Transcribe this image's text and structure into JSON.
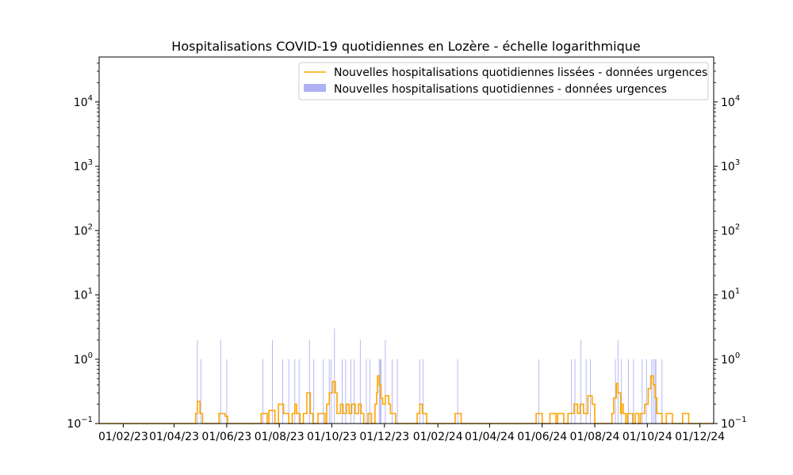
{
  "chart_data": {
    "type": "bar",
    "title": "Hospitalisations COVID-19 quotidiennes en Lozère - échelle logarithmique",
    "xlabel": "",
    "ylabel": "",
    "y_scale": "log",
    "ylim": [
      0.1,
      50000
    ],
    "y_ticks": [
      {
        "value": 0.1,
        "base": "10",
        "exp": "−1"
      },
      {
        "value": 1,
        "base": "10",
        "exp": "0"
      },
      {
        "value": 10,
        "base": "10",
        "exp": "1"
      },
      {
        "value": 100,
        "base": "10",
        "exp": "2"
      },
      {
        "value": 1000,
        "base": "10",
        "exp": "3"
      },
      {
        "value": 10000,
        "base": "10",
        "exp": "4"
      }
    ],
    "x_range": [
      "2023-01-04",
      "2024-12-17"
    ],
    "x_ticks": [
      {
        "date": "2023-02-01",
        "label": "01/02/23"
      },
      {
        "date": "2023-04-01",
        "label": "01/04/23"
      },
      {
        "date": "2023-06-01",
        "label": "01/06/23"
      },
      {
        "date": "2023-08-01",
        "label": "01/08/23"
      },
      {
        "date": "2023-10-01",
        "label": "01/10/23"
      },
      {
        "date": "2023-12-01",
        "label": "01/12/23"
      },
      {
        "date": "2024-02-01",
        "label": "01/02/24"
      },
      {
        "date": "2024-04-01",
        "label": "01/04/24"
      },
      {
        "date": "2024-06-01",
        "label": "01/06/24"
      },
      {
        "date": "2024-08-01",
        "label": "01/08/24"
      },
      {
        "date": "2024-10-01",
        "label": "01/10/24"
      },
      {
        "date": "2024-12-01",
        "label": "01/12/24"
      }
    ],
    "legend": {
      "placement": "upper-right",
      "entries": [
        {
          "label": "Nouvelles hospitalisations quotidiennes lissées - données urgences",
          "kind": "line",
          "color": "#ffa500"
        },
        {
          "label": "Nouvelles hospitalisations quotidiennes - données urgences",
          "kind": "bar",
          "color": "#b0b0f5"
        }
      ]
    },
    "series": [
      {
        "kind": "bar",
        "color": "#b0b0f5",
        "points": [
          {
            "date": "2023-04-28",
            "value": 2
          },
          {
            "date": "2023-05-02",
            "value": 1
          },
          {
            "date": "2023-05-25",
            "value": 2
          },
          {
            "date": "2023-06-01",
            "value": 1
          },
          {
            "date": "2023-07-13",
            "value": 1
          },
          {
            "date": "2023-07-24",
            "value": 2
          },
          {
            "date": "2023-08-05",
            "value": 1
          },
          {
            "date": "2023-08-12",
            "value": 1
          },
          {
            "date": "2023-08-19",
            "value": 1
          },
          {
            "date": "2023-08-24",
            "value": 1
          },
          {
            "date": "2023-09-05",
            "value": 2
          },
          {
            "date": "2023-09-10",
            "value": 1
          },
          {
            "date": "2023-09-21",
            "value": 1
          },
          {
            "date": "2023-09-28",
            "value": 1
          },
          {
            "date": "2023-09-30",
            "value": 1
          },
          {
            "date": "2023-10-04",
            "value": 3
          },
          {
            "date": "2023-10-13",
            "value": 1
          },
          {
            "date": "2023-10-17",
            "value": 1
          },
          {
            "date": "2023-10-23",
            "value": 1
          },
          {
            "date": "2023-10-27",
            "value": 1
          },
          {
            "date": "2023-11-03",
            "value": 2
          },
          {
            "date": "2023-11-10",
            "value": 1
          },
          {
            "date": "2023-11-14",
            "value": 1
          },
          {
            "date": "2023-11-25",
            "value": 1
          },
          {
            "date": "2023-11-26",
            "value": 1
          },
          {
            "date": "2023-11-27",
            "value": 1
          },
          {
            "date": "2023-12-02",
            "value": 2
          },
          {
            "date": "2023-12-10",
            "value": 1
          },
          {
            "date": "2023-12-16",
            "value": 1
          },
          {
            "date": "2024-01-11",
            "value": 1
          },
          {
            "date": "2024-01-15",
            "value": 1
          },
          {
            "date": "2024-02-24",
            "value": 1
          },
          {
            "date": "2024-05-28",
            "value": 1
          },
          {
            "date": "2024-07-05",
            "value": 1
          },
          {
            "date": "2024-07-09",
            "value": 1
          },
          {
            "date": "2024-07-16",
            "value": 2
          },
          {
            "date": "2024-07-22",
            "value": 1
          },
          {
            "date": "2024-07-27",
            "value": 1
          },
          {
            "date": "2024-08-25",
            "value": 1
          },
          {
            "date": "2024-08-28",
            "value": 2
          },
          {
            "date": "2024-09-01",
            "value": 1
          },
          {
            "date": "2024-09-09",
            "value": 1
          },
          {
            "date": "2024-09-15",
            "value": 1
          },
          {
            "date": "2024-09-25",
            "value": 1
          },
          {
            "date": "2024-09-30",
            "value": 1
          },
          {
            "date": "2024-10-06",
            "value": 1
          },
          {
            "date": "2024-10-08",
            "value": 1
          },
          {
            "date": "2024-10-10",
            "value": 1
          },
          {
            "date": "2024-10-11",
            "value": 1
          },
          {
            "date": "2024-10-18",
            "value": 1
          }
        ]
      },
      {
        "kind": "line",
        "color": "#ffa500",
        "points": [
          [
            "2023-01-04",
            0.1
          ],
          [
            "2023-04-26",
            0.1
          ],
          [
            "2023-04-26",
            0.143
          ],
          [
            "2023-04-28",
            0.143
          ],
          [
            "2023-04-28",
            0.22
          ],
          [
            "2023-05-01",
            0.22
          ],
          [
            "2023-05-01",
            0.143
          ],
          [
            "2023-05-04",
            0.143
          ],
          [
            "2023-05-04",
            0.1
          ],
          [
            "2023-05-23",
            0.1
          ],
          [
            "2023-05-23",
            0.143
          ],
          [
            "2023-05-30",
            0.143
          ],
          [
            "2023-05-30",
            0.13
          ],
          [
            "2023-06-02",
            0.13
          ],
          [
            "2023-06-02",
            0.1
          ],
          [
            "2023-07-11",
            0.1
          ],
          [
            "2023-07-11",
            0.143
          ],
          [
            "2023-07-18",
            0.143
          ],
          [
            "2023-07-18",
            0.1
          ],
          [
            "2023-07-20",
            0.1
          ],
          [
            "2023-07-20",
            0.16
          ],
          [
            "2023-07-27",
            0.16
          ],
          [
            "2023-07-27",
            0.1
          ],
          [
            "2023-07-31",
            0.1
          ],
          [
            "2023-07-31",
            0.2
          ],
          [
            "2023-08-06",
            0.2
          ],
          [
            "2023-08-06",
            0.143
          ],
          [
            "2023-08-12",
            0.143
          ],
          [
            "2023-08-12",
            0.1
          ],
          [
            "2023-08-16",
            0.1
          ],
          [
            "2023-08-16",
            0.143
          ],
          [
            "2023-08-19",
            0.143
          ],
          [
            "2023-08-19",
            0.2
          ],
          [
            "2023-08-21",
            0.2
          ],
          [
            "2023-08-21",
            0.143
          ],
          [
            "2023-08-25",
            0.143
          ],
          [
            "2023-08-25",
            0.1
          ],
          [
            "2023-08-29",
            0.1
          ],
          [
            "2023-08-29",
            0.143
          ],
          [
            "2023-09-02",
            0.143
          ],
          [
            "2023-09-02",
            0.3
          ],
          [
            "2023-09-06",
            0.3
          ],
          [
            "2023-09-06",
            0.143
          ],
          [
            "2023-09-09",
            0.143
          ],
          [
            "2023-09-09",
            0.1
          ],
          [
            "2023-09-15",
            0.1
          ],
          [
            "2023-09-15",
            0.143
          ],
          [
            "2023-09-23",
            0.143
          ],
          [
            "2023-09-23",
            0.1
          ],
          [
            "2023-09-25",
            0.1
          ],
          [
            "2023-09-25",
            0.2
          ],
          [
            "2023-09-28",
            0.2
          ],
          [
            "2023-09-28",
            0.3
          ],
          [
            "2023-10-02",
            0.3
          ],
          [
            "2023-10-02",
            0.45
          ],
          [
            "2023-10-05",
            0.45
          ],
          [
            "2023-10-05",
            0.3
          ],
          [
            "2023-10-07",
            0.3
          ],
          [
            "2023-10-07",
            0.143
          ],
          [
            "2023-10-11",
            0.143
          ],
          [
            "2023-10-11",
            0.2
          ],
          [
            "2023-10-14",
            0.2
          ],
          [
            "2023-10-14",
            0.143
          ],
          [
            "2023-10-18",
            0.143
          ],
          [
            "2023-10-18",
            0.2
          ],
          [
            "2023-10-21",
            0.2
          ],
          [
            "2023-10-21",
            0.143
          ],
          [
            "2023-10-24",
            0.143
          ],
          [
            "2023-10-24",
            0.2
          ],
          [
            "2023-10-28",
            0.2
          ],
          [
            "2023-10-28",
            0.143
          ],
          [
            "2023-11-01",
            0.143
          ],
          [
            "2023-11-01",
            0.2
          ],
          [
            "2023-11-04",
            0.2
          ],
          [
            "2023-11-04",
            0.143
          ],
          [
            "2023-11-07",
            0.143
          ],
          [
            "2023-11-07",
            0.1
          ],
          [
            "2023-11-12",
            0.1
          ],
          [
            "2023-11-12",
            0.143
          ],
          [
            "2023-11-16",
            0.143
          ],
          [
            "2023-11-16",
            0.1
          ],
          [
            "2023-11-20",
            0.1
          ],
          [
            "2023-11-20",
            0.2
          ],
          [
            "2023-11-22",
            0.2
          ],
          [
            "2023-11-22",
            0.3
          ],
          [
            "2023-11-23",
            0.3
          ],
          [
            "2023-11-23",
            0.55
          ],
          [
            "2023-11-25",
            0.55
          ],
          [
            "2023-11-25",
            0.4
          ],
          [
            "2023-11-27",
            0.4
          ],
          [
            "2023-11-27",
            0.25
          ],
          [
            "2023-11-29",
            0.25
          ],
          [
            "2023-11-29",
            0.2
          ],
          [
            "2023-12-02",
            0.2
          ],
          [
            "2023-12-02",
            0.27
          ],
          [
            "2023-12-06",
            0.27
          ],
          [
            "2023-12-06",
            0.2
          ],
          [
            "2023-12-08",
            0.2
          ],
          [
            "2023-12-08",
            0.143
          ],
          [
            "2023-12-14",
            0.143
          ],
          [
            "2023-12-14",
            0.1
          ],
          [
            "2024-01-08",
            0.1
          ],
          [
            "2024-01-08",
            0.143
          ],
          [
            "2024-01-11",
            0.143
          ],
          [
            "2024-01-11",
            0.2
          ],
          [
            "2024-01-14",
            0.2
          ],
          [
            "2024-01-14",
            0.143
          ],
          [
            "2024-01-19",
            0.143
          ],
          [
            "2024-01-19",
            0.1
          ],
          [
            "2024-02-21",
            0.1
          ],
          [
            "2024-02-21",
            0.143
          ],
          [
            "2024-02-28",
            0.143
          ],
          [
            "2024-02-28",
            0.1
          ],
          [
            "2024-05-25",
            0.1
          ],
          [
            "2024-05-25",
            0.143
          ],
          [
            "2024-06-01",
            0.143
          ],
          [
            "2024-06-01",
            0.1
          ],
          [
            "2024-06-10",
            0.1
          ],
          [
            "2024-06-10",
            0.143
          ],
          [
            "2024-06-17",
            0.143
          ],
          [
            "2024-06-17",
            0.1
          ],
          [
            "2024-06-19",
            0.1
          ],
          [
            "2024-06-19",
            0.143
          ],
          [
            "2024-06-26",
            0.143
          ],
          [
            "2024-06-26",
            0.1
          ],
          [
            "2024-07-01",
            0.1
          ],
          [
            "2024-07-01",
            0.143
          ],
          [
            "2024-07-08",
            0.143
          ],
          [
            "2024-07-08",
            0.2
          ],
          [
            "2024-07-12",
            0.2
          ],
          [
            "2024-07-12",
            0.143
          ],
          [
            "2024-07-15",
            0.143
          ],
          [
            "2024-07-15",
            0.2
          ],
          [
            "2024-07-19",
            0.2
          ],
          [
            "2024-07-19",
            0.143
          ],
          [
            "2024-07-24",
            0.143
          ],
          [
            "2024-07-24",
            0.27
          ],
          [
            "2024-07-29",
            0.27
          ],
          [
            "2024-07-29",
            0.2
          ],
          [
            "2024-08-01",
            0.2
          ],
          [
            "2024-08-01",
            0.1
          ],
          [
            "2024-08-21",
            0.1
          ],
          [
            "2024-08-21",
            0.143
          ],
          [
            "2024-08-23",
            0.143
          ],
          [
            "2024-08-23",
            0.25
          ],
          [
            "2024-08-26",
            0.25
          ],
          [
            "2024-08-26",
            0.42
          ],
          [
            "2024-08-28",
            0.42
          ],
          [
            "2024-08-28",
            0.3
          ],
          [
            "2024-08-31",
            0.3
          ],
          [
            "2024-08-31",
            0.143
          ],
          [
            "2024-09-01",
            0.143
          ],
          [
            "2024-09-01",
            0.2
          ],
          [
            "2024-09-03",
            0.2
          ],
          [
            "2024-09-03",
            0.143
          ],
          [
            "2024-09-06",
            0.143
          ],
          [
            "2024-09-06",
            0.1
          ],
          [
            "2024-09-08",
            0.1
          ],
          [
            "2024-09-08",
            0.143
          ],
          [
            "2024-09-14",
            0.143
          ],
          [
            "2024-09-14",
            0.1
          ],
          [
            "2024-09-17",
            0.1
          ],
          [
            "2024-09-17",
            0.143
          ],
          [
            "2024-09-21",
            0.143
          ],
          [
            "2024-09-21",
            0.1
          ],
          [
            "2024-09-23",
            0.1
          ],
          [
            "2024-09-23",
            0.143
          ],
          [
            "2024-09-28",
            0.143
          ],
          [
            "2024-09-28",
            0.2
          ],
          [
            "2024-10-02",
            0.2
          ],
          [
            "2024-10-02",
            0.35
          ],
          [
            "2024-10-05",
            0.35
          ],
          [
            "2024-10-05",
            0.55
          ],
          [
            "2024-10-08",
            0.55
          ],
          [
            "2024-10-08",
            0.4
          ],
          [
            "2024-10-10",
            0.4
          ],
          [
            "2024-10-10",
            0.25
          ],
          [
            "2024-10-12",
            0.25
          ],
          [
            "2024-10-12",
            0.143
          ],
          [
            "2024-10-18",
            0.143
          ],
          [
            "2024-10-18",
            0.1
          ],
          [
            "2024-10-23",
            0.1
          ],
          [
            "2024-10-23",
            0.143
          ],
          [
            "2024-10-30",
            0.143
          ],
          [
            "2024-10-30",
            0.1
          ],
          [
            "2024-11-11",
            0.1
          ],
          [
            "2024-11-11",
            0.143
          ],
          [
            "2024-11-18",
            0.143
          ],
          [
            "2024-11-18",
            0.1
          ],
          [
            "2024-12-17",
            0.1
          ]
        ]
      }
    ]
  }
}
